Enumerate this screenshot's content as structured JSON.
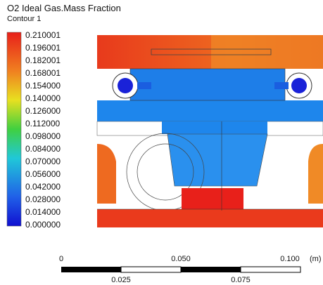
{
  "legend": {
    "title": "O2 Ideal Gas.Mass Fraction",
    "subtitle": "Contour 1",
    "labels": [
      "0.210001",
      "0.196001",
      "0.182001",
      "0.168001",
      "0.154000",
      "0.140000",
      "0.126000",
      "0.112000",
      "0.098000",
      "0.084000",
      "0.070000",
      "0.056000",
      "0.042000",
      "0.028000",
      "0.014000",
      "0.000000"
    ]
  },
  "scale_bar": {
    "top_labels": [
      "0",
      "0.050",
      "0.100"
    ],
    "unit": "(m)",
    "bottom_labels": [
      "0.025",
      "0.075"
    ]
  }
}
